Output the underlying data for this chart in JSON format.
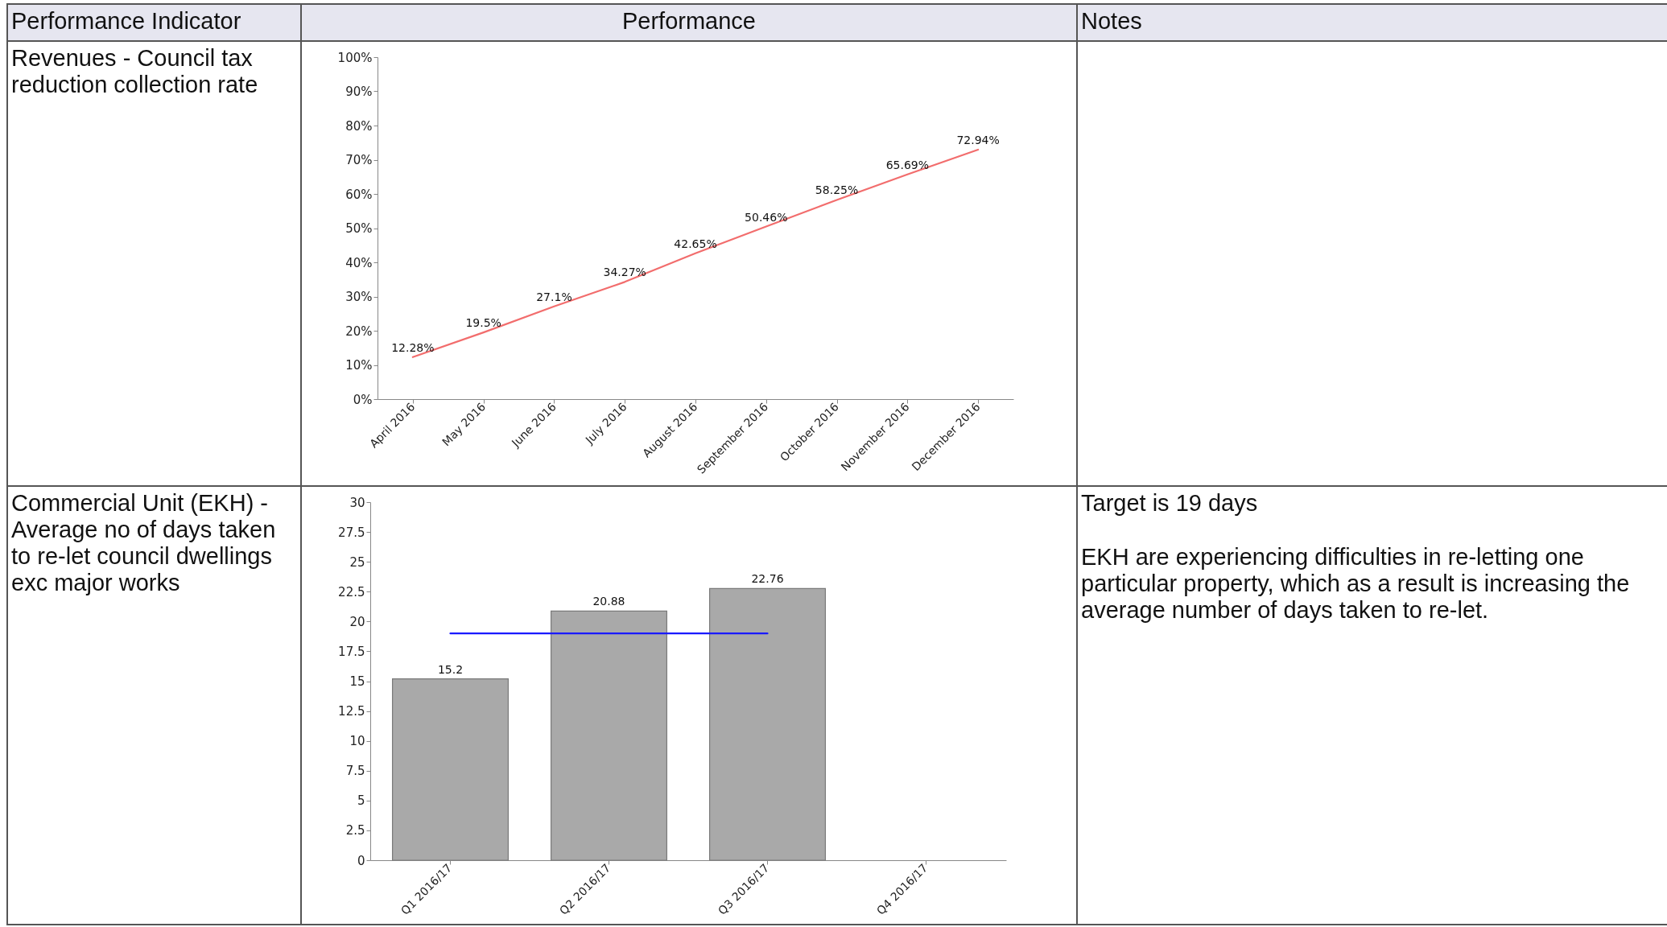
{
  "chart_data": [
    {
      "type": "other",
      "annotations": [
        "Performance Indicator",
        "Performance",
        "Notes"
      ]
    },
    {
      "type": "line",
      "title": "Revenues - Council tax reduction collection rate",
      "categories": [
        "April 2016",
        "May 2016",
        "June 2016",
        "July 2016",
        "August 2016",
        "September 2016",
        "October 2016",
        "November 2016",
        "December 2016"
      ],
      "series": [
        {
          "color": "#f26d6d",
          "values": [
            12.28,
            19.5,
            27.1,
            34.27,
            42.65,
            50.46,
            58.25,
            65.69,
            72.94
          ],
          "value_labels": [
            "12.28%",
            "19.5%",
            "27.1%",
            "34.27%",
            "42.65%",
            "50.46%",
            "58.25%",
            "65.69%",
            "72.94%"
          ]
        }
      ],
      "ylim": [
        0,
        100
      ],
      "yticks": [
        {
          "value": 0,
          "label": "0%"
        },
        {
          "value": 10,
          "label": "10%"
        },
        {
          "value": 20,
          "label": "20%"
        },
        {
          "value": 30,
          "label": "30%"
        },
        {
          "value": 40,
          "label": "40%"
        },
        {
          "value": 50,
          "label": "50%"
        },
        {
          "value": 60,
          "label": "60%"
        },
        {
          "value": 70,
          "label": "70%"
        },
        {
          "value": 80,
          "label": "80%"
        },
        {
          "value": 90,
          "label": "90%"
        },
        {
          "value": 100,
          "label": "100%"
        }
      ]
    },
    {
      "type": "bar",
      "title": "Commercial Unit (EKH) - Average no of days taken to re-let council dwellings exc major works",
      "categories": [
        "Q1 2016/17",
        "Q2 2016/17",
        "Q3 2016/17",
        "Q4 2016/17"
      ],
      "series": [
        {
          "type": "bar",
          "color": "#a9a9a9",
          "values": [
            15.2,
            20.88,
            22.76,
            null
          ],
          "value_labels": [
            "15.2",
            "20.88",
            "22.76",
            null
          ]
        },
        {
          "type": "line",
          "color": "#1a1aff",
          "values": [
            19,
            19,
            19,
            null
          ]
        }
      ],
      "ylim": [
        0,
        30
      ],
      "yticks": [
        0,
        2.5,
        5,
        7.5,
        10,
        12.5,
        15,
        17.5,
        20,
        22.5,
        25,
        27.5,
        30
      ],
      "annotations": [
        "Target is 19 days",
        "EKH are experiencing difficulties in re-letting one particular property, which as a result is increasing the average number of days taken to re-let."
      ]
    }
  ]
}
